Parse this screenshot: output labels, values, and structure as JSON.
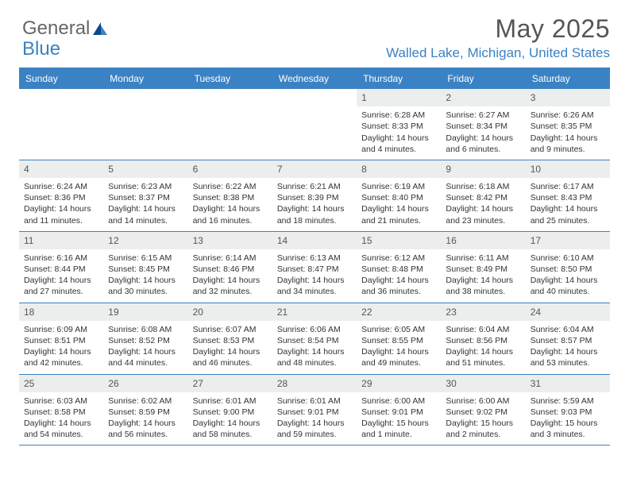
{
  "logo": {
    "general": "General",
    "blue": "Blue"
  },
  "title": "May 2025",
  "location": "Walled Lake, Michigan, United States",
  "weekdays": [
    "Sunday",
    "Monday",
    "Tuesday",
    "Wednesday",
    "Thursday",
    "Friday",
    "Saturday"
  ],
  "colors": {
    "accent": "#3b82c4",
    "header_band": "#eceeee",
    "text": "#333333",
    "title_text": "#555555",
    "bg": "#ffffff"
  },
  "typography": {
    "title_fontsize_pt": 24,
    "location_fontsize_pt": 13,
    "weekday_fontsize_pt": 9,
    "daynum_fontsize_pt": 9,
    "body_fontsize_pt": 8
  },
  "layout": {
    "columns": 7,
    "rows": 5,
    "aspect": "792x612"
  },
  "days": [
    {
      "n": "",
      "sunrise": "",
      "sunset": "",
      "daylight1": "",
      "daylight2": ""
    },
    {
      "n": "",
      "sunrise": "",
      "sunset": "",
      "daylight1": "",
      "daylight2": ""
    },
    {
      "n": "",
      "sunrise": "",
      "sunset": "",
      "daylight1": "",
      "daylight2": ""
    },
    {
      "n": "",
      "sunrise": "",
      "sunset": "",
      "daylight1": "",
      "daylight2": ""
    },
    {
      "n": "1",
      "sunrise": "Sunrise: 6:28 AM",
      "sunset": "Sunset: 8:33 PM",
      "daylight1": "Daylight: 14 hours",
      "daylight2": "and 4 minutes."
    },
    {
      "n": "2",
      "sunrise": "Sunrise: 6:27 AM",
      "sunset": "Sunset: 8:34 PM",
      "daylight1": "Daylight: 14 hours",
      "daylight2": "and 6 minutes."
    },
    {
      "n": "3",
      "sunrise": "Sunrise: 6:26 AM",
      "sunset": "Sunset: 8:35 PM",
      "daylight1": "Daylight: 14 hours",
      "daylight2": "and 9 minutes."
    },
    {
      "n": "4",
      "sunrise": "Sunrise: 6:24 AM",
      "sunset": "Sunset: 8:36 PM",
      "daylight1": "Daylight: 14 hours",
      "daylight2": "and 11 minutes."
    },
    {
      "n": "5",
      "sunrise": "Sunrise: 6:23 AM",
      "sunset": "Sunset: 8:37 PM",
      "daylight1": "Daylight: 14 hours",
      "daylight2": "and 14 minutes."
    },
    {
      "n": "6",
      "sunrise": "Sunrise: 6:22 AM",
      "sunset": "Sunset: 8:38 PM",
      "daylight1": "Daylight: 14 hours",
      "daylight2": "and 16 minutes."
    },
    {
      "n": "7",
      "sunrise": "Sunrise: 6:21 AM",
      "sunset": "Sunset: 8:39 PM",
      "daylight1": "Daylight: 14 hours",
      "daylight2": "and 18 minutes."
    },
    {
      "n": "8",
      "sunrise": "Sunrise: 6:19 AM",
      "sunset": "Sunset: 8:40 PM",
      "daylight1": "Daylight: 14 hours",
      "daylight2": "and 21 minutes."
    },
    {
      "n": "9",
      "sunrise": "Sunrise: 6:18 AM",
      "sunset": "Sunset: 8:42 PM",
      "daylight1": "Daylight: 14 hours",
      "daylight2": "and 23 minutes."
    },
    {
      "n": "10",
      "sunrise": "Sunrise: 6:17 AM",
      "sunset": "Sunset: 8:43 PM",
      "daylight1": "Daylight: 14 hours",
      "daylight2": "and 25 minutes."
    },
    {
      "n": "11",
      "sunrise": "Sunrise: 6:16 AM",
      "sunset": "Sunset: 8:44 PM",
      "daylight1": "Daylight: 14 hours",
      "daylight2": "and 27 minutes."
    },
    {
      "n": "12",
      "sunrise": "Sunrise: 6:15 AM",
      "sunset": "Sunset: 8:45 PM",
      "daylight1": "Daylight: 14 hours",
      "daylight2": "and 30 minutes."
    },
    {
      "n": "13",
      "sunrise": "Sunrise: 6:14 AM",
      "sunset": "Sunset: 8:46 PM",
      "daylight1": "Daylight: 14 hours",
      "daylight2": "and 32 minutes."
    },
    {
      "n": "14",
      "sunrise": "Sunrise: 6:13 AM",
      "sunset": "Sunset: 8:47 PM",
      "daylight1": "Daylight: 14 hours",
      "daylight2": "and 34 minutes."
    },
    {
      "n": "15",
      "sunrise": "Sunrise: 6:12 AM",
      "sunset": "Sunset: 8:48 PM",
      "daylight1": "Daylight: 14 hours",
      "daylight2": "and 36 minutes."
    },
    {
      "n": "16",
      "sunrise": "Sunrise: 6:11 AM",
      "sunset": "Sunset: 8:49 PM",
      "daylight1": "Daylight: 14 hours",
      "daylight2": "and 38 minutes."
    },
    {
      "n": "17",
      "sunrise": "Sunrise: 6:10 AM",
      "sunset": "Sunset: 8:50 PM",
      "daylight1": "Daylight: 14 hours",
      "daylight2": "and 40 minutes."
    },
    {
      "n": "18",
      "sunrise": "Sunrise: 6:09 AM",
      "sunset": "Sunset: 8:51 PM",
      "daylight1": "Daylight: 14 hours",
      "daylight2": "and 42 minutes."
    },
    {
      "n": "19",
      "sunrise": "Sunrise: 6:08 AM",
      "sunset": "Sunset: 8:52 PM",
      "daylight1": "Daylight: 14 hours",
      "daylight2": "and 44 minutes."
    },
    {
      "n": "20",
      "sunrise": "Sunrise: 6:07 AM",
      "sunset": "Sunset: 8:53 PM",
      "daylight1": "Daylight: 14 hours",
      "daylight2": "and 46 minutes."
    },
    {
      "n": "21",
      "sunrise": "Sunrise: 6:06 AM",
      "sunset": "Sunset: 8:54 PM",
      "daylight1": "Daylight: 14 hours",
      "daylight2": "and 48 minutes."
    },
    {
      "n": "22",
      "sunrise": "Sunrise: 6:05 AM",
      "sunset": "Sunset: 8:55 PM",
      "daylight1": "Daylight: 14 hours",
      "daylight2": "and 49 minutes."
    },
    {
      "n": "23",
      "sunrise": "Sunrise: 6:04 AM",
      "sunset": "Sunset: 8:56 PM",
      "daylight1": "Daylight: 14 hours",
      "daylight2": "and 51 minutes."
    },
    {
      "n": "24",
      "sunrise": "Sunrise: 6:04 AM",
      "sunset": "Sunset: 8:57 PM",
      "daylight1": "Daylight: 14 hours",
      "daylight2": "and 53 minutes."
    },
    {
      "n": "25",
      "sunrise": "Sunrise: 6:03 AM",
      "sunset": "Sunset: 8:58 PM",
      "daylight1": "Daylight: 14 hours",
      "daylight2": "and 54 minutes."
    },
    {
      "n": "26",
      "sunrise": "Sunrise: 6:02 AM",
      "sunset": "Sunset: 8:59 PM",
      "daylight1": "Daylight: 14 hours",
      "daylight2": "and 56 minutes."
    },
    {
      "n": "27",
      "sunrise": "Sunrise: 6:01 AM",
      "sunset": "Sunset: 9:00 PM",
      "daylight1": "Daylight: 14 hours",
      "daylight2": "and 58 minutes."
    },
    {
      "n": "28",
      "sunrise": "Sunrise: 6:01 AM",
      "sunset": "Sunset: 9:01 PM",
      "daylight1": "Daylight: 14 hours",
      "daylight2": "and 59 minutes."
    },
    {
      "n": "29",
      "sunrise": "Sunrise: 6:00 AM",
      "sunset": "Sunset: 9:01 PM",
      "daylight1": "Daylight: 15 hours",
      "daylight2": "and 1 minute."
    },
    {
      "n": "30",
      "sunrise": "Sunrise: 6:00 AM",
      "sunset": "Sunset: 9:02 PM",
      "daylight1": "Daylight: 15 hours",
      "daylight2": "and 2 minutes."
    },
    {
      "n": "31",
      "sunrise": "Sunrise: 5:59 AM",
      "sunset": "Sunset: 9:03 PM",
      "daylight1": "Daylight: 15 hours",
      "daylight2": "and 3 minutes."
    }
  ]
}
